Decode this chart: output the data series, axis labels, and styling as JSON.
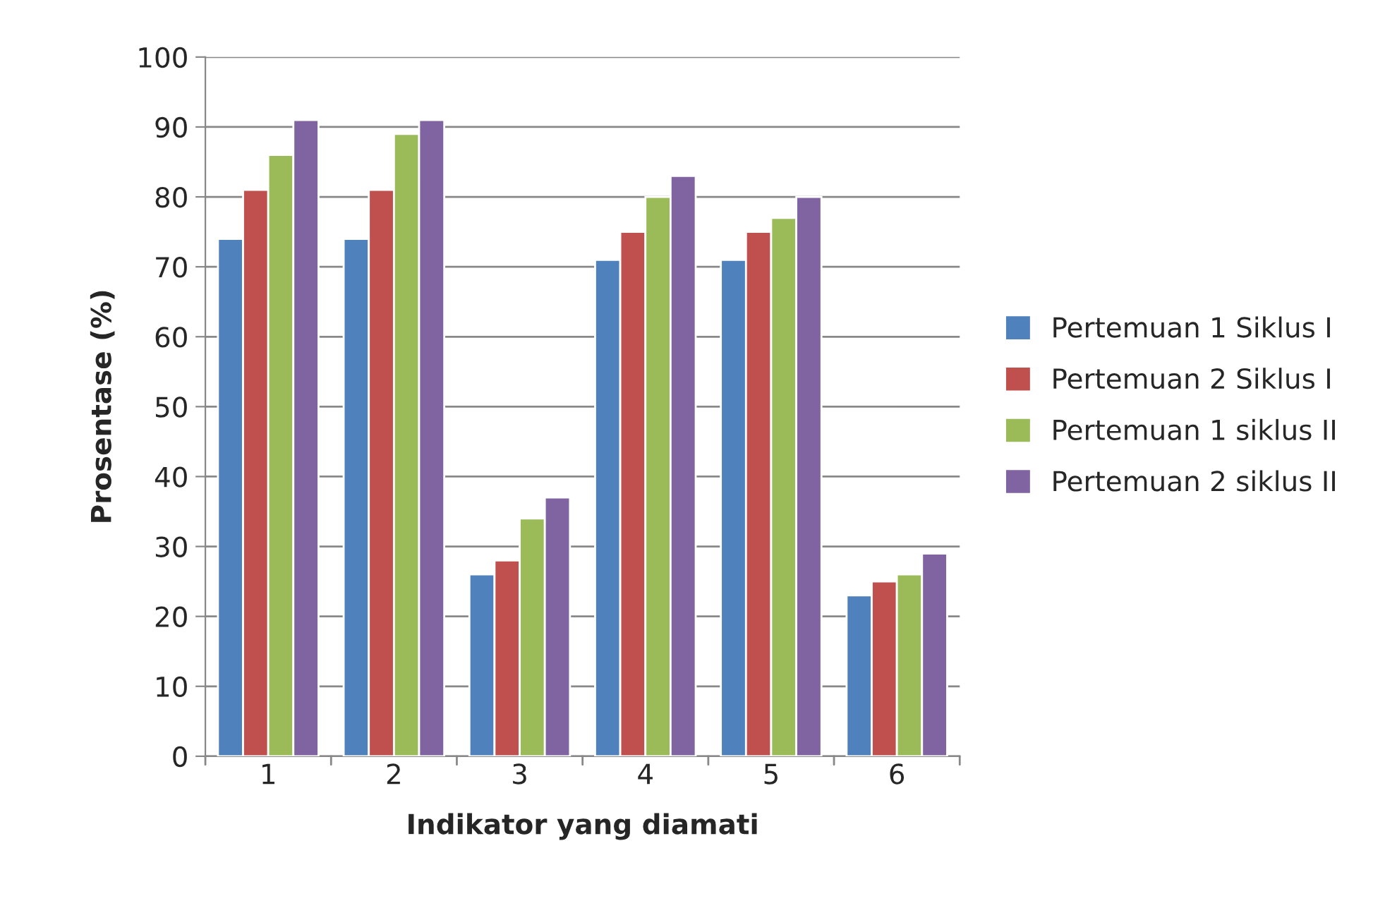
{
  "chart_data": {
    "type": "bar",
    "xlabel": "Indikator yang diamati",
    "ylabel": "Prosentase (%)",
    "categories": [
      "1",
      "2",
      "3",
      "4",
      "5",
      "6"
    ],
    "series": [
      {
        "name": "Pertemuan 1 Siklus I",
        "color": "#4f81bd",
        "values": [
          74,
          74,
          26,
          71,
          71,
          23
        ]
      },
      {
        "name": "Pertemuan 2 Siklus I",
        "color": "#c0504d",
        "values": [
          81,
          81,
          28,
          75,
          75,
          25
        ]
      },
      {
        "name": "Pertemuan 1 siklus II",
        "color": "#9bbb59",
        "values": [
          86,
          89,
          34,
          80,
          77,
          26
        ]
      },
      {
        "name": "Pertemuan 2 siklus II",
        "color": "#8064a2",
        "values": [
          91,
          91,
          37,
          83,
          80,
          29
        ]
      }
    ],
    "ylim": [
      0,
      100
    ],
    "yticks": [
      0,
      10,
      20,
      30,
      40,
      50,
      60,
      70,
      80,
      90,
      100
    ],
    "grid": "y",
    "legend": "right"
  }
}
